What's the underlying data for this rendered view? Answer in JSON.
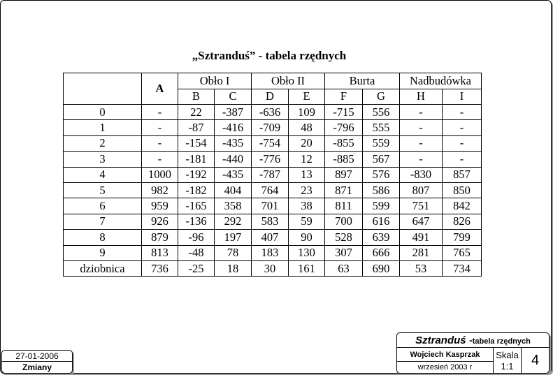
{
  "title": "„Sztranduś” - tabela rzędnych",
  "table": {
    "group_headers": [
      "Obło I",
      "Obło II",
      "Burta",
      "Nadbudówka"
    ],
    "col_a": "A",
    "sub_headers": [
      "B",
      "C",
      "D",
      "E",
      "F",
      "G",
      "H",
      "I"
    ],
    "rows": [
      [
        "0",
        "-",
        "22",
        "-387",
        "-636",
        "109",
        "-715",
        "556",
        "-",
        "-"
      ],
      [
        "1",
        "-",
        "-87",
        "-416",
        "-709",
        "48",
        "-796",
        "555",
        "-",
        "-"
      ],
      [
        "2",
        "-",
        "-154",
        "-435",
        "-754",
        "20",
        "-855",
        "559",
        "-",
        "-"
      ],
      [
        "3",
        "-",
        "-181",
        "-440",
        "-776",
        "12",
        "-885",
        "567",
        "-",
        "-"
      ],
      [
        "4",
        "1000",
        "-192",
        "-435",
        "-787",
        "13",
        "897",
        "576",
        "-830",
        "857"
      ],
      [
        "5",
        "982",
        "-182",
        "404",
        "764",
        "23",
        "871",
        "586",
        "807",
        "850"
      ],
      [
        "6",
        "959",
        "-165",
        "358",
        "701",
        "38",
        "811",
        "599",
        "751",
        "842"
      ],
      [
        "7",
        "926",
        "-136",
        "292",
        "583",
        "59",
        "700",
        "616",
        "647",
        "826"
      ],
      [
        "8",
        "879",
        "-96",
        "197",
        "407",
        "90",
        "528",
        "639",
        "491",
        "799"
      ],
      [
        "9",
        "813",
        "-48",
        "78",
        "183",
        "130",
        "307",
        "666",
        "281",
        "765"
      ],
      [
        "dziobnica",
        "736",
        "-25",
        "18",
        "30",
        "161",
        "63",
        "690",
        "53",
        "734"
      ]
    ]
  },
  "title_block": {
    "project": "Sztranduś",
    "dash": "-",
    "subtitle": "tabela rzędnych",
    "author": "Wojciech Kasprzak",
    "date": "wrzesień 2003 r",
    "scale_label": "Skala",
    "scale_value": "1:1",
    "sheet_number": "4"
  },
  "changes_block": {
    "date": "27-01-2006",
    "label": "Zmiany"
  }
}
